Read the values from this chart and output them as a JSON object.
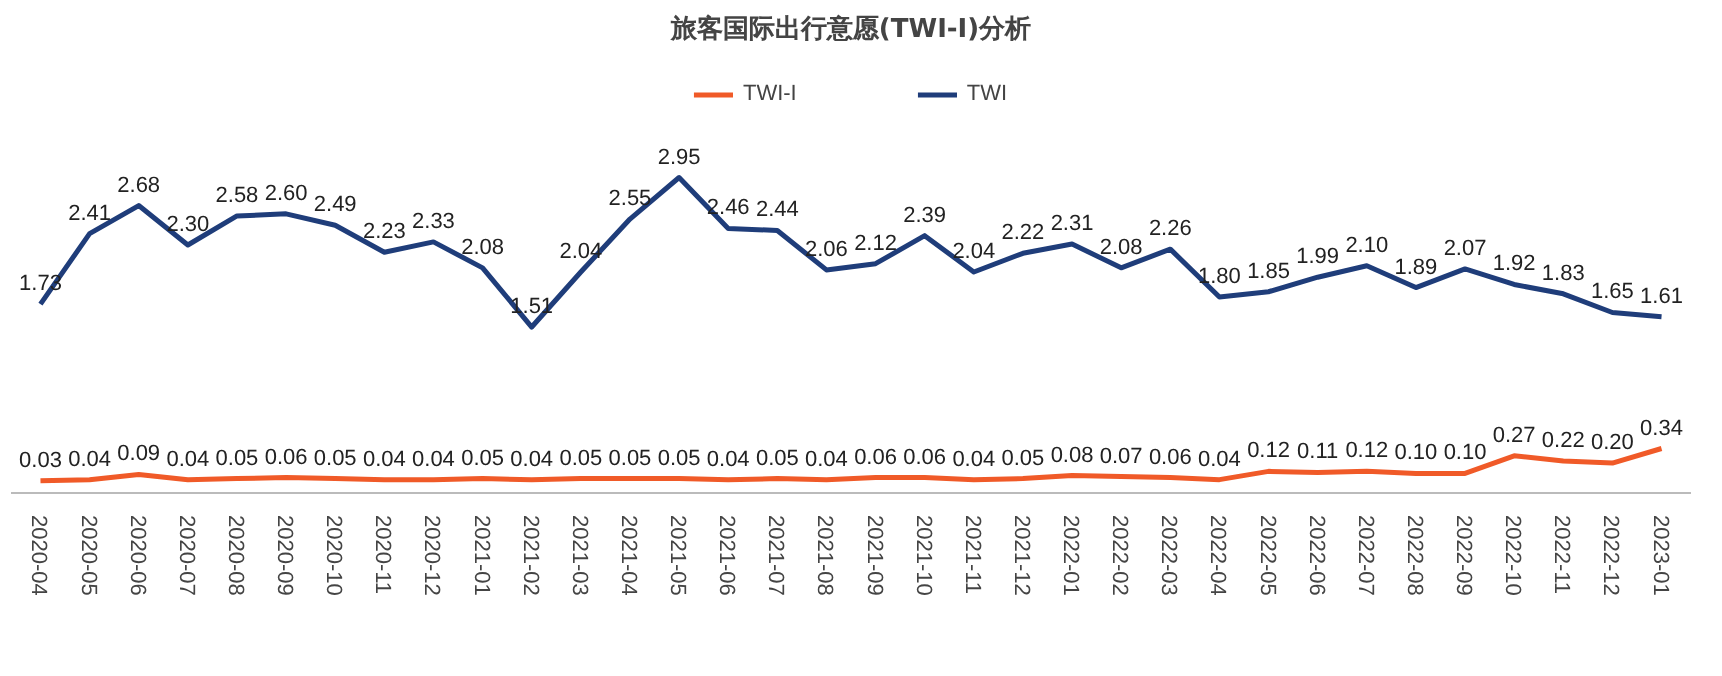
{
  "chart_data": {
    "type": "line",
    "title": "旅客国际出行意愿(TWI-I)分析",
    "categories": [
      "2020-04",
      "2020-05",
      "2020-06",
      "2020-07",
      "2020-08",
      "2020-09",
      "2020-10",
      "2020-11",
      "2020-12",
      "2021-01",
      "2021-02",
      "2021-03",
      "2021-04",
      "2021-05",
      "2021-06",
      "2021-07",
      "2021-08",
      "2021-09",
      "2021-10",
      "2021-11",
      "2021-12",
      "2022-01",
      "2022-02",
      "2022-03",
      "2022-04",
      "2022-05",
      "2022-06",
      "2022-07",
      "2022-08",
      "2022-09",
      "2022-10",
      "2022-11",
      "2022-12",
      "2023-01"
    ],
    "series": [
      {
        "name": "TWI-I",
        "color": "#f05a28",
        "values": [
          0.03,
          0.04,
          0.09,
          0.04,
          0.05,
          0.06,
          0.05,
          0.04,
          0.04,
          0.05,
          0.04,
          0.05,
          0.05,
          0.05,
          0.04,
          0.05,
          0.04,
          0.06,
          0.06,
          0.04,
          0.05,
          0.08,
          0.07,
          0.06,
          0.04,
          0.12,
          0.11,
          0.12,
          0.1,
          0.1,
          0.27,
          0.22,
          0.2,
          0.34
        ],
        "value_labels": [
          "0.03",
          "0.04",
          "0.09",
          "0.04",
          "0.05",
          "0.06",
          "0.05",
          "0.04",
          "0.04",
          "0.05",
          "0.04",
          "0.05",
          "0.05",
          "0.05",
          "0.04",
          "0.05",
          "0.04",
          "0.06",
          "0.06",
          "0.04",
          "0.05",
          "0.08",
          "0.07",
          "0.06",
          "0.04",
          "0.12",
          "0.11",
          "0.12",
          "0.10",
          "0.10",
          "0.27",
          "0.22",
          "0.20",
          "0.34"
        ]
      },
      {
        "name": "TWI",
        "color": "#1f3d7a",
        "values": [
          1.73,
          2.41,
          2.68,
          2.3,
          2.58,
          2.6,
          2.49,
          2.23,
          2.33,
          2.08,
          1.51,
          2.04,
          2.55,
          2.95,
          2.46,
          2.44,
          2.06,
          2.12,
          2.39,
          2.04,
          2.22,
          2.31,
          2.08,
          2.26,
          1.8,
          1.85,
          1.99,
          2.1,
          1.89,
          2.07,
          1.92,
          1.83,
          1.65,
          1.61
        ],
        "value_labels": [
          "1.73",
          "2.41",
          "2.68",
          "2.30",
          "2.58",
          "2.60",
          "2.49",
          "2.23",
          "2.33",
          "2.08",
          "1.51",
          "2.04",
          "2.55",
          "2.95",
          "2.46",
          "2.44",
          "2.06",
          "2.12",
          "2.39",
          "2.04",
          "2.22",
          "2.31",
          "2.08",
          "2.26",
          "1.80",
          "1.85",
          "1.99",
          "2.10",
          "1.89",
          "2.07",
          "1.92",
          "1.83",
          "1.65",
          "1.61"
        ]
      }
    ],
    "legend": "top"
  }
}
